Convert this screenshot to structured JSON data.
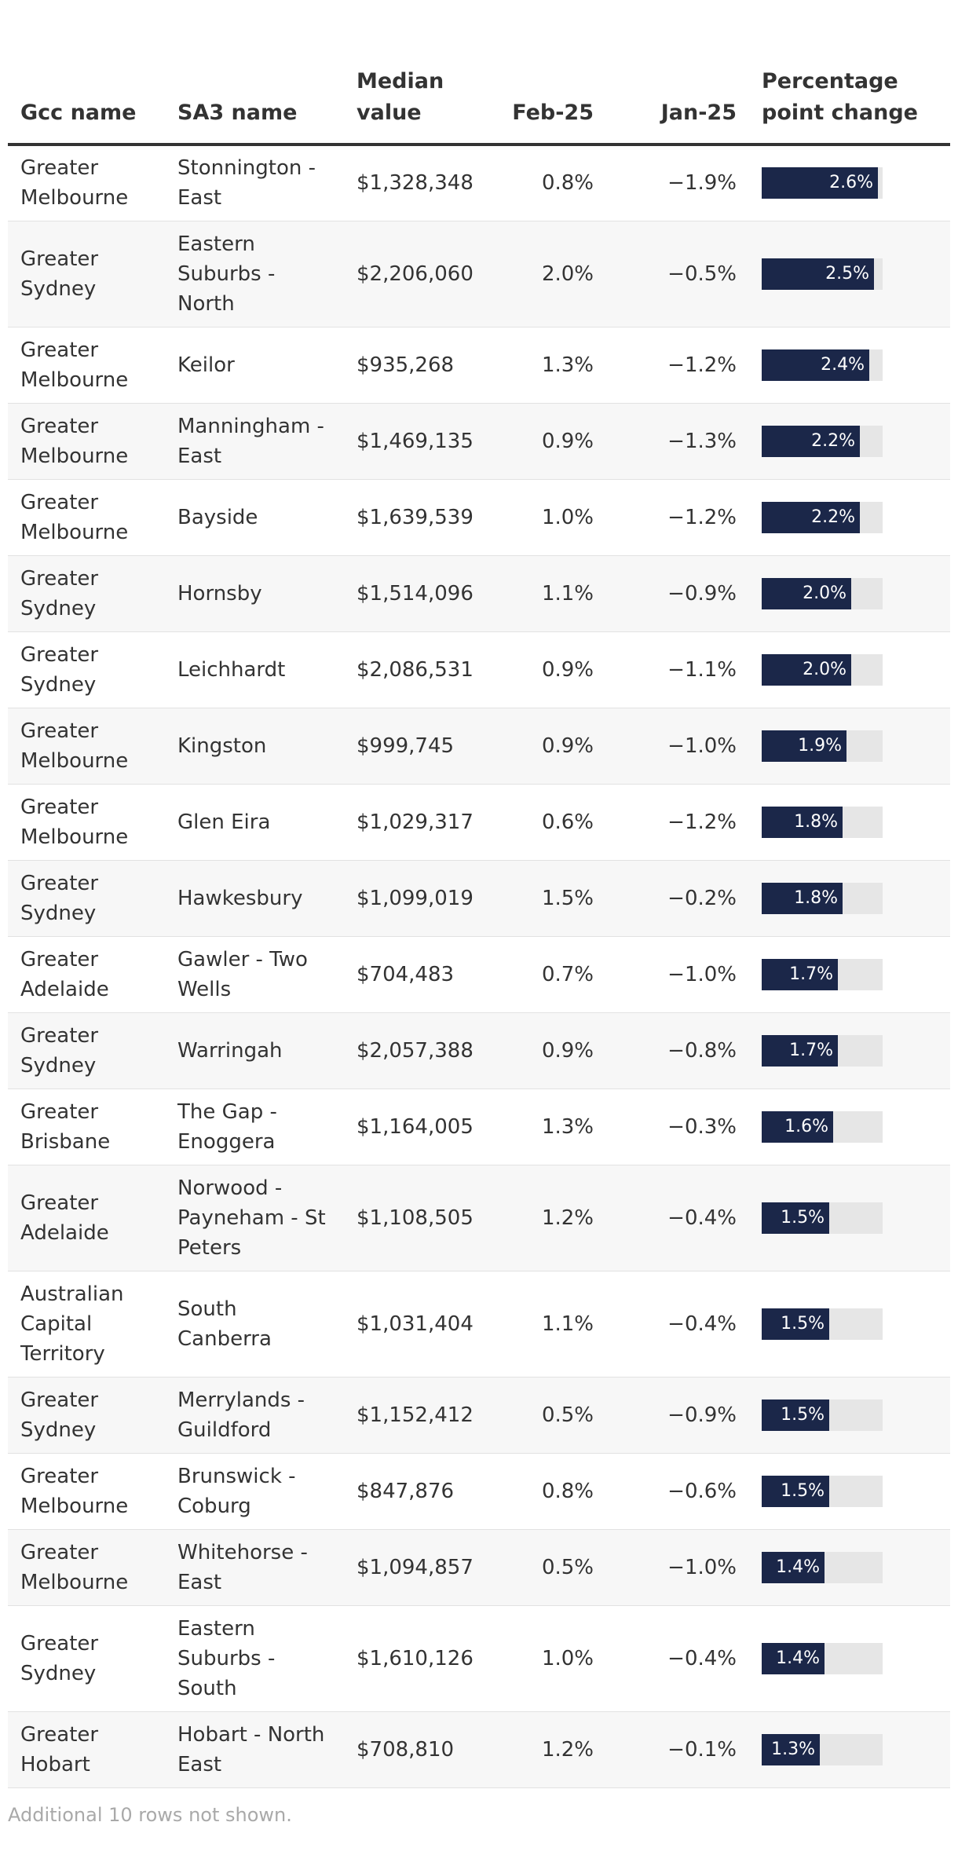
{
  "table": {
    "columns": [
      "Gcc name",
      "SA3 name",
      "Median value",
      "Feb-25",
      "Jan-25",
      "Percentage point change"
    ],
    "rows": [
      {
        "gcc": "Greater Melbourne",
        "sa3": "Stonnington - East",
        "median": "$1,328,348",
        "feb": "0.8%",
        "jan": "−1.9%",
        "change_label": "2.6%",
        "change": 2.6
      },
      {
        "gcc": "Greater Sydney",
        "sa3": "Eastern Suburbs - North",
        "median": "$2,206,060",
        "feb": "2.0%",
        "jan": "−0.5%",
        "change_label": "2.5%",
        "change": 2.5
      },
      {
        "gcc": "Greater Melbourne",
        "sa3": "Keilor",
        "median": "$935,268",
        "feb": "1.3%",
        "jan": "−1.2%",
        "change_label": "2.4%",
        "change": 2.4
      },
      {
        "gcc": "Greater Melbourne",
        "sa3": "Manningham - East",
        "median": "$1,469,135",
        "feb": "0.9%",
        "jan": "−1.3%",
        "change_label": "2.2%",
        "change": 2.2
      },
      {
        "gcc": "Greater Melbourne",
        "sa3": "Bayside",
        "median": "$1,639,539",
        "feb": "1.0%",
        "jan": "−1.2%",
        "change_label": "2.2%",
        "change": 2.2
      },
      {
        "gcc": "Greater Sydney",
        "sa3": "Hornsby",
        "median": "$1,514,096",
        "feb": "1.1%",
        "jan": "−0.9%",
        "change_label": "2.0%",
        "change": 2.0
      },
      {
        "gcc": "Greater Sydney",
        "sa3": "Leichhardt",
        "median": "$2,086,531",
        "feb": "0.9%",
        "jan": "−1.1%",
        "change_label": "2.0%",
        "change": 2.0
      },
      {
        "gcc": "Greater Melbourne",
        "sa3": "Kingston",
        "median": "$999,745",
        "feb": "0.9%",
        "jan": "−1.0%",
        "change_label": "1.9%",
        "change": 1.9
      },
      {
        "gcc": "Greater Melbourne",
        "sa3": "Glen Eira",
        "median": "$1,029,317",
        "feb": "0.6%",
        "jan": "−1.2%",
        "change_label": "1.8%",
        "change": 1.8
      },
      {
        "gcc": "Greater Sydney",
        "sa3": "Hawkesbury",
        "median": "$1,099,019",
        "feb": "1.5%",
        "jan": "−0.2%",
        "change_label": "1.8%",
        "change": 1.8
      },
      {
        "gcc": "Greater Adelaide",
        "sa3": "Gawler - Two Wells",
        "median": "$704,483",
        "feb": "0.7%",
        "jan": "−1.0%",
        "change_label": "1.7%",
        "change": 1.7
      },
      {
        "gcc": "Greater Sydney",
        "sa3": "Warringah",
        "median": "$2,057,388",
        "feb": "0.9%",
        "jan": "−0.8%",
        "change_label": "1.7%",
        "change": 1.7
      },
      {
        "gcc": "Greater Brisbane",
        "sa3": "The Gap - Enoggera",
        "median": "$1,164,005",
        "feb": "1.3%",
        "jan": "−0.3%",
        "change_label": "1.6%",
        "change": 1.6
      },
      {
        "gcc": "Greater Adelaide",
        "sa3": "Norwood - Payneham - St Peters",
        "median": "$1,108,505",
        "feb": "1.2%",
        "jan": "−0.4%",
        "change_label": "1.5%",
        "change": 1.5
      },
      {
        "gcc": "Australian Capital Territory",
        "sa3": "South Canberra",
        "median": "$1,031,404",
        "feb": "1.1%",
        "jan": "−0.4%",
        "change_label": "1.5%",
        "change": 1.5
      },
      {
        "gcc": "Greater Sydney",
        "sa3": "Merrylands - Guildford",
        "median": "$1,152,412",
        "feb": "0.5%",
        "jan": "−0.9%",
        "change_label": "1.5%",
        "change": 1.5
      },
      {
        "gcc": "Greater Melbourne",
        "sa3": "Brunswick - Coburg",
        "median": "$847,876",
        "feb": "0.8%",
        "jan": "−0.6%",
        "change_label": "1.5%",
        "change": 1.5
      },
      {
        "gcc": "Greater Melbourne",
        "sa3": "Whitehorse - East",
        "median": "$1,094,857",
        "feb": "0.5%",
        "jan": "−1.0%",
        "change_label": "1.4%",
        "change": 1.4
      },
      {
        "gcc": "Greater Sydney",
        "sa3": "Eastern Suburbs - South",
        "median": "$1,610,126",
        "feb": "1.0%",
        "jan": "−0.4%",
        "change_label": "1.4%",
        "change": 1.4
      },
      {
        "gcc": "Greater Hobart",
        "sa3": "Hobart - North East",
        "median": "$708,810",
        "feb": "1.2%",
        "jan": "−0.1%",
        "change_label": "1.3%",
        "change": 1.3
      }
    ],
    "footnote": "Additional 10 rows not shown."
  },
  "chart_data": {
    "type": "table",
    "columns": [
      "Gcc name",
      "SA3 name",
      "Median value",
      "Feb-25",
      "Jan-25",
      "Percentage point change"
    ],
    "bar_column": "Percentage point change",
    "bar_max": 2.7,
    "bar_color": "#1b2749",
    "bar_track_color": "#e6e6e6",
    "values": [
      2.6,
      2.5,
      2.4,
      2.2,
      2.2,
      2.0,
      2.0,
      1.9,
      1.8,
      1.8,
      1.7,
      1.7,
      1.6,
      1.5,
      1.5,
      1.5,
      1.5,
      1.4,
      1.4,
      1.3
    ]
  }
}
